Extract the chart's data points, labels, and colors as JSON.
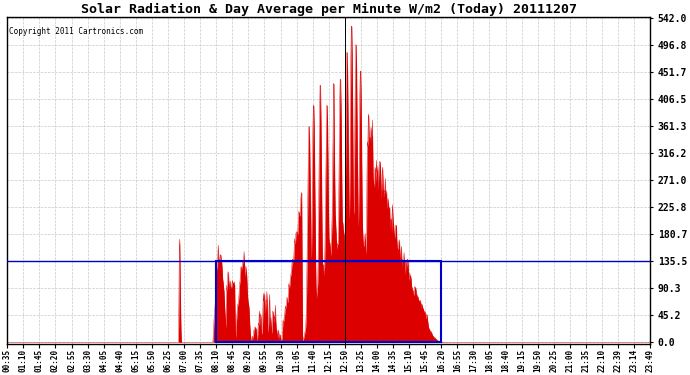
{
  "title": "Solar Radiation & Day Average per Minute W/m2 (Today) 20111207",
  "copyright": "Copyright 2011 Cartronics.com",
  "y_max": 542.0,
  "y_ticks": [
    0.0,
    45.2,
    90.3,
    135.5,
    180.7,
    225.8,
    271.0,
    316.2,
    361.3,
    406.5,
    451.7,
    496.8,
    542.0
  ],
  "background_color": "#ffffff",
  "plot_bg_color": "#ffffff",
  "red_color": "#dd0000",
  "blue_color": "#0000cc",
  "grid_color": "#bbbbbb",
  "x_labels": [
    "00:35",
    "01:10",
    "01:45",
    "02:20",
    "02:55",
    "03:30",
    "04:05",
    "04:40",
    "05:15",
    "05:50",
    "06:25",
    "07:00",
    "07:35",
    "08:10",
    "08:45",
    "09:20",
    "09:55",
    "10:30",
    "11:05",
    "11:40",
    "12:15",
    "12:50",
    "13:25",
    "14:00",
    "14:35",
    "15:10",
    "15:45",
    "16:20",
    "16:55",
    "17:30",
    "18:05",
    "18:40",
    "19:15",
    "19:50",
    "20:25",
    "21:00",
    "21:35",
    "22:10",
    "22:39",
    "23:14",
    "23:49"
  ],
  "day_average": 135.5,
  "rect_start_label": "08:10",
  "rect_end_label": "16:20",
  "peak_label": "12:50",
  "n_points": 1440,
  "sunrise_min": 460,
  "sunset_min": 980,
  "spike_min": 385
}
